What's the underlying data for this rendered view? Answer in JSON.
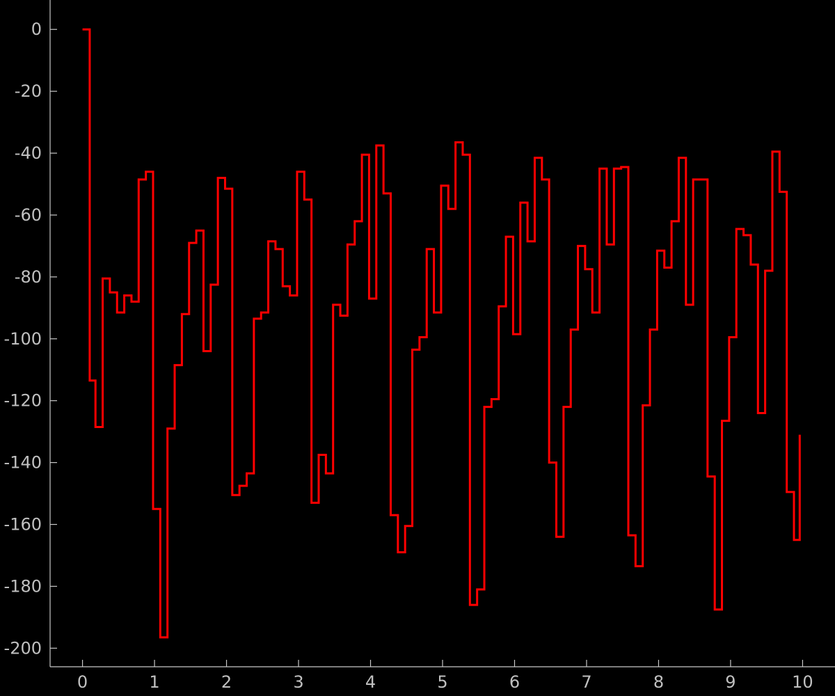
{
  "chart_data": {
    "type": "line",
    "title": "",
    "xlabel": "",
    "ylabel": "",
    "xlim": [
      -0.45,
      10.45
    ],
    "ylim": [
      -206,
      9.5
    ],
    "x_ticks": [
      0,
      1,
      2,
      3,
      4,
      5,
      6,
      7,
      8,
      9,
      10
    ],
    "y_ticks": [
      0,
      -20,
      -40,
      -60,
      -80,
      -100,
      -120,
      -140,
      -160,
      -180,
      -200
    ],
    "grid": false,
    "legend": "none",
    "background_color": "#000000",
    "axis_color": "#c8c8c8",
    "tick_label_color": "#c0c0c0",
    "series": [
      {
        "color": "#ff0000",
        "step": "post",
        "x": [
          0,
          0.1,
          0.18,
          0.28,
          0.38,
          0.48,
          0.58,
          0.68,
          0.78,
          0.88,
          0.98,
          1.08,
          1.18,
          1.28,
          1.38,
          1.48,
          1.58,
          1.68,
          1.78,
          1.88,
          1.98,
          2.08,
          2.18,
          2.28,
          2.38,
          2.48,
          2.58,
          2.68,
          2.78,
          2.88,
          2.98,
          3.08,
          3.18,
          3.28,
          3.38,
          3.48,
          3.58,
          3.68,
          3.78,
          3.88,
          3.98,
          4.08,
          4.18,
          4.28,
          4.38,
          4.48,
          4.58,
          4.68,
          4.78,
          4.88,
          4.98,
          5.08,
          5.18,
          5.28,
          5.38,
          5.48,
          5.58,
          5.68,
          5.78,
          5.88,
          5.98,
          6.08,
          6.18,
          6.28,
          6.38,
          6.48,
          6.58,
          6.68,
          6.78,
          6.88,
          6.98,
          7.08,
          7.18,
          7.28,
          7.38,
          7.48,
          7.58,
          7.68,
          7.78,
          7.88,
          7.98,
          8.08,
          8.18,
          8.28,
          8.38,
          8.48,
          8.58,
          8.68,
          8.78,
          8.88,
          8.98,
          9.08,
          9.18,
          9.28,
          9.38,
          9.48,
          9.58,
          9.68,
          9.78,
          9.88,
          9.96
        ],
        "y": [
          0,
          -113.5,
          -128.5,
          -80.5,
          -85,
          -91.5,
          -86,
          -88,
          -48.5,
          -46,
          -155,
          -196.5,
          -129,
          -108.5,
          -92,
          -69,
          -65,
          -104,
          -82.5,
          -48,
          -51.5,
          -150.5,
          -147.5,
          -143.5,
          -93.5,
          -91.5,
          -68.5,
          -71,
          -83,
          -86,
          -46,
          -55,
          -153,
          -137.5,
          -143.5,
          -89,
          -92.5,
          -69.5,
          -62,
          -40.5,
          -87,
          -37.5,
          -53,
          -157,
          -169,
          -160.5,
          -103.5,
          -99.5,
          -71,
          -91.5,
          -50.5,
          -58,
          -36.5,
          -40.5,
          -186,
          -181,
          -122,
          -119.5,
          -89.5,
          -67,
          -98.5,
          -56,
          -68.5,
          -41.5,
          -48.5,
          -140,
          -164,
          -122,
          -97,
          -70,
          -77.5,
          -91.5,
          -45,
          -69.5,
          -45,
          -44.5,
          -163.5,
          -173.5,
          -121.5,
          -97,
          -71.5,
          -77,
          -62,
          -41.5,
          -89,
          -48.5,
          -48.5,
          -144.5,
          -187.5,
          -126.5,
          -99.5,
          -64.5,
          -66.5,
          -76,
          -124,
          -78,
          -39.5,
          -52.5,
          -149.5,
          -165,
          -131
        ]
      }
    ]
  }
}
